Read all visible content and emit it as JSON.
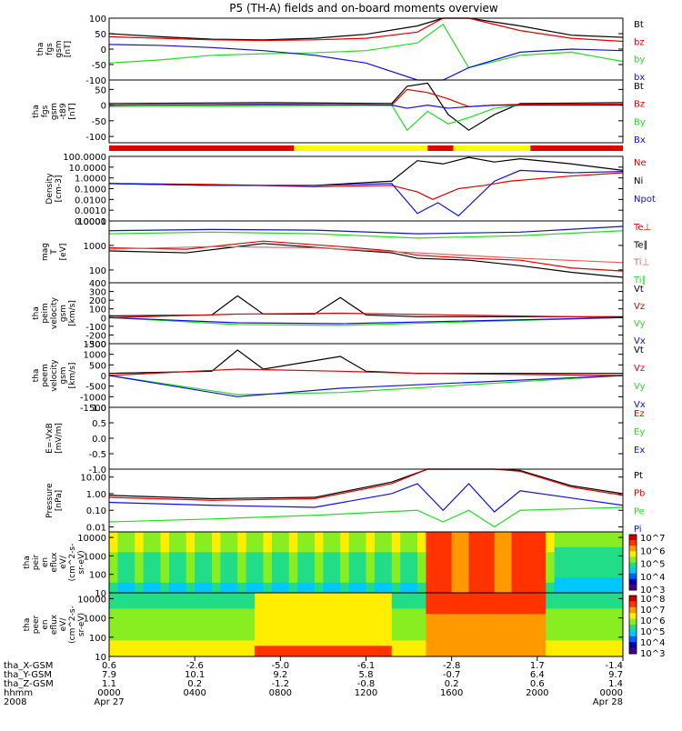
{
  "title": "P5 (TH-A) fields and on-board moments overview",
  "colors": {
    "black": "#000000",
    "red": "#e00000",
    "green": "#22dd22",
    "blue": "#1010dd",
    "yellow": "#ffff00"
  },
  "chart_data": [
    {
      "type": "line",
      "panel": "fgs",
      "ylabel": [
        "tha",
        "fgs",
        "gsm",
        "[nT]"
      ],
      "ylim": [
        -100,
        100
      ],
      "yticks": [
        "100",
        "50",
        "0",
        "-50",
        "-100"
      ],
      "legend": [
        "Bt",
        "bz",
        "by",
        "bx"
      ],
      "series": [
        {
          "name": "Bt",
          "color": "#000000",
          "t": [
            0,
            0.1,
            0.2,
            0.3,
            0.4,
            0.5,
            0.6,
            0.65,
            0.7,
            0.8,
            0.9,
            1.0
          ],
          "values": [
            50,
            40,
            32,
            30,
            35,
            48,
            75,
            100,
            100,
            75,
            45,
            38
          ]
        },
        {
          "name": "bz",
          "color": "#e00000",
          "t": [
            0,
            0.1,
            0.2,
            0.3,
            0.4,
            0.5,
            0.6,
            0.65,
            0.7,
            0.8,
            0.9,
            1.0
          ],
          "values": [
            40,
            35,
            30,
            28,
            30,
            35,
            55,
            100,
            100,
            60,
            35,
            25
          ]
        },
        {
          "name": "by",
          "color": "#22dd22",
          "t": [
            0,
            0.1,
            0.2,
            0.3,
            0.4,
            0.5,
            0.6,
            0.65,
            0.7,
            0.8,
            0.9,
            1.0
          ],
          "values": [
            -45,
            -35,
            -20,
            -15,
            -12,
            -5,
            20,
            80,
            -60,
            -20,
            -10,
            -40
          ]
        },
        {
          "name": "bx",
          "color": "#1010dd",
          "t": [
            0,
            0.1,
            0.2,
            0.3,
            0.4,
            0.5,
            0.6,
            0.65,
            0.7,
            0.8,
            0.9,
            1.0
          ],
          "values": [
            15,
            12,
            5,
            -5,
            -20,
            -45,
            -100,
            -100,
            -60,
            -10,
            0,
            -5
          ]
        }
      ]
    },
    {
      "type": "line",
      "panel": "fgs-t89",
      "ylabel": [
        "tha",
        "fgs",
        "gsm",
        "-t89",
        "[nT]"
      ],
      "ylim": [
        -120,
        80
      ],
      "yticks": [
        "50",
        "0",
        "-50",
        "-100"
      ],
      "legend": [
        "Bt",
        "Bz",
        "By",
        "Bx"
      ],
      "series": [
        {
          "name": "Bt",
          "color": "#000000",
          "t": [
            0,
            0.3,
            0.55,
            0.58,
            0.62,
            0.66,
            0.7,
            0.75,
            0.8,
            1.0
          ],
          "values": [
            5,
            8,
            5,
            60,
            70,
            -30,
            -80,
            -30,
            5,
            8
          ]
        },
        {
          "name": "Bz",
          "color": "#e00000",
          "t": [
            0,
            0.3,
            0.55,
            0.58,
            0.62,
            0.66,
            0.7,
            0.75,
            0.8,
            1.0
          ],
          "values": [
            0,
            3,
            0,
            50,
            40,
            20,
            -5,
            0,
            2,
            3
          ]
        },
        {
          "name": "By",
          "color": "#22dd22",
          "t": [
            0,
            0.3,
            0.55,
            0.58,
            0.62,
            0.66,
            0.7,
            0.75,
            0.8,
            1.0
          ],
          "values": [
            -5,
            -2,
            0,
            -80,
            -20,
            -60,
            -40,
            -10,
            0,
            0
          ]
        },
        {
          "name": "Bx",
          "color": "#1010dd",
          "t": [
            0,
            0.3,
            0.55,
            0.58,
            0.62,
            0.66,
            0.7,
            0.75,
            0.8,
            1.0
          ],
          "values": [
            0,
            2,
            0,
            -10,
            0,
            -10,
            -5,
            0,
            0,
            0
          ]
        }
      ]
    },
    {
      "type": "line",
      "panel": "density",
      "scale": "log",
      "ylabel": [
        "Density",
        "[cm-3]"
      ],
      "ylim": [
        0.0001,
        100
      ],
      "yticks": [
        "100.0000",
        "10.0000",
        "1.0000",
        "0.1000",
        "0.0100",
        "0.0010",
        "0.0001"
      ],
      "legend": [
        "Ne",
        "Ni",
        "Npot"
      ],
      "series": [
        {
          "name": "Ne",
          "color": "#e00000",
          "t": [
            0,
            0.2,
            0.4,
            0.55,
            0.6,
            0.63,
            0.68,
            0.73,
            0.78,
            0.9,
            1.0
          ],
          "values": [
            0.3,
            0.25,
            0.15,
            0.2,
            0.05,
            0.01,
            0.1,
            0.2,
            0.5,
            1.5,
            3
          ]
        },
        {
          "name": "Ni",
          "color": "#000000",
          "t": [
            0,
            0.2,
            0.4,
            0.55,
            0.6,
            0.65,
            0.7,
            0.75,
            0.8,
            0.9,
            1.0
          ],
          "values": [
            0.3,
            0.2,
            0.2,
            0.5,
            40,
            20,
            80,
            30,
            60,
            20,
            5
          ]
        },
        {
          "name": "Npot",
          "color": "#1010dd",
          "t": [
            0,
            0.2,
            0.4,
            0.55,
            0.6,
            0.64,
            0.68,
            0.75,
            0.8,
            0.9,
            1.0
          ],
          "values": [
            0.3,
            0.2,
            0.2,
            0.3,
            0.0005,
            0.005,
            0.0003,
            0.5,
            5,
            3,
            4
          ]
        }
      ]
    },
    {
      "type": "line",
      "panel": "temperature",
      "scale": "log",
      "ylabel": [
        "mag",
        "T",
        "[eV]"
      ],
      "ylim": [
        30,
        10000
      ],
      "yticks": [
        "10000",
        "1000",
        "100"
      ],
      "legend": [
        "Te⊥",
        "Te∥",
        "Ti⊥",
        "Ti∥"
      ],
      "series": [
        {
          "name": "Te⊥",
          "color": "#e00000",
          "t": [
            0,
            0.15,
            0.3,
            0.45,
            0.55,
            0.6,
            0.7,
            0.8,
            0.9,
            1.0
          ],
          "values": [
            800,
            700,
            1500,
            900,
            600,
            400,
            300,
            250,
            120,
            90
          ]
        },
        {
          "name": "Te∥",
          "color": "#000000",
          "t": [
            0,
            0.15,
            0.3,
            0.45,
            0.55,
            0.6,
            0.7,
            0.8,
            0.9,
            1.0
          ],
          "values": [
            600,
            500,
            1200,
            700,
            500,
            300,
            250,
            150,
            80,
            50
          ]
        },
        {
          "name": "Ti⊥",
          "color": "#e06060",
          "t": [
            0,
            0.2,
            0.4,
            0.6,
            0.8,
            1.0
          ],
          "values": [
            700,
            900,
            800,
            500,
            300,
            200
          ]
        },
        {
          "name": "Ti∥",
          "color": "#22dd22",
          "t": [
            0,
            0.2,
            0.4,
            0.6,
            0.8,
            1.0
          ],
          "values": [
            3000,
            3500,
            3000,
            2000,
            2500,
            4000
          ]
        },
        {
          "name": "Ti",
          "color": "#1010dd",
          "t": [
            0,
            0.2,
            0.4,
            0.6,
            0.8,
            1.0
          ],
          "values": [
            4000,
            4500,
            4200,
            3000,
            3500,
            6000
          ]
        }
      ]
    },
    {
      "type": "line",
      "panel": "peim-velocity",
      "ylabel": [
        "tha",
        "peim",
        "velocity",
        "gsm",
        "[km/s]"
      ],
      "ylim": [
        -300,
        400
      ],
      "yticks": [
        "400",
        "300",
        "200",
        "100",
        "0",
        "-100",
        "-200",
        "-300"
      ],
      "legend": [
        "Vt",
        "Vz",
        "Vy",
        "Vx"
      ],
      "series": [
        {
          "name": "Vt",
          "color": "#000000",
          "t": [
            0,
            0.2,
            0.25,
            0.3,
            0.4,
            0.45,
            0.5,
            0.6,
            1.0
          ],
          "values": [
            20,
            30,
            250,
            40,
            40,
            230,
            30,
            10,
            10
          ]
        },
        {
          "name": "Vz",
          "color": "#e00000",
          "t": [
            0,
            0.25,
            0.45,
            1.0
          ],
          "values": [
            0,
            40,
            50,
            0
          ]
        },
        {
          "name": "Vy",
          "color": "#22dd22",
          "t": [
            0,
            0.25,
            0.45,
            1.0
          ],
          "values": [
            0,
            -80,
            -90,
            0
          ]
        },
        {
          "name": "Vx",
          "color": "#1010dd",
          "t": [
            0,
            0.25,
            0.45,
            1.0
          ],
          "values": [
            0,
            -60,
            -70,
            0
          ]
        }
      ]
    },
    {
      "type": "line",
      "panel": "peem-velocity",
      "ylabel": [
        "tha",
        "peem",
        "velocity",
        "gsm",
        "[km/s]"
      ],
      "ylim": [
        -1500,
        1500
      ],
      "yticks": [
        "1500",
        "1000",
        "500",
        "0",
        "-500",
        "-1000",
        "-1500"
      ],
      "legend": [
        "Vt",
        "Vz",
        "Vy",
        "Vx"
      ],
      "series": [
        {
          "name": "Vt",
          "color": "#000000",
          "t": [
            0,
            0.2,
            0.25,
            0.3,
            0.45,
            0.5,
            0.6,
            1.0
          ],
          "values": [
            100,
            200,
            1200,
            300,
            900,
            200,
            100,
            100
          ]
        },
        {
          "name": "Vz",
          "color": "#e00000",
          "t": [
            0,
            0.25,
            0.45,
            0.6,
            1.0
          ],
          "values": [
            0,
            300,
            200,
            100,
            0
          ]
        },
        {
          "name": "Vy",
          "color": "#22dd22",
          "t": [
            0,
            0.25,
            0.45,
            1.0
          ],
          "values": [
            0,
            -900,
            -800,
            0
          ]
        },
        {
          "name": "Vx",
          "color": "#1010dd",
          "t": [
            0,
            0.25,
            0.45,
            1.0
          ],
          "values": [
            0,
            -1000,
            -600,
            0
          ]
        }
      ]
    },
    {
      "type": "line",
      "panel": "efield",
      "ylabel": [
        "E=-VxB",
        "[mV/m]"
      ],
      "ylim": [
        -1,
        1
      ],
      "yticks": [
        "1.0",
        "0.5",
        "0.0",
        "-0.5",
        "-1.0"
      ],
      "legend": [
        "Ez",
        "Ey",
        "Ex"
      ],
      "series": []
    },
    {
      "type": "line",
      "panel": "pressure",
      "scale": "log",
      "ylabel": [
        "Pressure",
        "[nPa]"
      ],
      "ylim": [
        0.005,
        30
      ],
      "yticks": [
        "10.00",
        "1.00",
        "0.10",
        "0.01"
      ],
      "legend": [
        "Pt",
        "Pb",
        "Pe",
        "Pi"
      ],
      "series": [
        {
          "name": "Pt",
          "color": "#000000",
          "t": [
            0,
            0.2,
            0.4,
            0.55,
            0.62,
            0.75,
            0.8,
            0.9,
            1.0
          ],
          "values": [
            0.8,
            0.5,
            0.6,
            5,
            30,
            30,
            25,
            3,
            1.0
          ]
        },
        {
          "name": "Pb",
          "color": "#e00000",
          "t": [
            0,
            0.2,
            0.4,
            0.55,
            0.62,
            0.75,
            0.8,
            0.9,
            1.0
          ],
          "values": [
            0.6,
            0.4,
            0.5,
            4,
            30,
            30,
            22,
            2.5,
            0.8
          ]
        },
        {
          "name": "Pe",
          "color": "#22dd22",
          "t": [
            0,
            0.2,
            0.4,
            0.6,
            0.65,
            0.7,
            0.75,
            0.8,
            1.0
          ],
          "values": [
            0.02,
            0.03,
            0.05,
            0.1,
            0.02,
            0.1,
            0.01,
            0.1,
            0.15
          ]
        },
        {
          "name": "Pi",
          "color": "#1010dd",
          "t": [
            0,
            0.2,
            0.4,
            0.55,
            0.6,
            0.65,
            0.7,
            0.75,
            0.8,
            1.0
          ],
          "values": [
            0.3,
            0.2,
            0.15,
            1.0,
            4,
            0.1,
            4,
            0.08,
            1.5,
            0.2
          ]
        }
      ]
    },
    {
      "type": "heatmap",
      "panel": "peir-eflux",
      "ylabel": [
        "tha",
        "peir",
        "en",
        "eflux",
        "eV/",
        "(cm^2-s-",
        "sr-eV)"
      ],
      "ylim": [
        10,
        20000
      ],
      "yticks": [
        "10000",
        "1000",
        "100",
        "10"
      ],
      "colorbar_ticks": [
        "10^7",
        "10^6",
        "10^5",
        "10^4",
        "10^3"
      ]
    },
    {
      "type": "heatmap",
      "panel": "peer-eflux",
      "ylabel": [
        "tha",
        "peer",
        "en",
        "eflux",
        "eV/",
        "(cm^2-s-",
        "sr-eV)"
      ],
      "ylim": [
        10,
        20000
      ],
      "yticks": [
        "10000",
        "1000",
        "100",
        "10"
      ],
      "colorbar_ticks": [
        "10^8",
        "10^7",
        "10^6",
        "10^5",
        "10^4",
        "10^3"
      ]
    }
  ],
  "footer": {
    "row_labels": [
      "tha_X-GSM",
      "tha_Y-GSM",
      "tha_Z-GSM",
      "hhmm",
      "2008"
    ],
    "columns": [
      {
        "v": [
          "0.6",
          "7.9",
          "1.1",
          "0000",
          "Apr 27"
        ]
      },
      {
        "v": [
          "-2.6",
          "10.1",
          "0.2",
          "0400",
          ""
        ]
      },
      {
        "v": [
          "-5.0",
          "9.2",
          "-1.2",
          "0800",
          ""
        ]
      },
      {
        "v": [
          "-6.1",
          "5.8",
          "-0.8",
          "1200",
          ""
        ]
      },
      {
        "v": [
          "-2.8",
          "-0.7",
          "0.2",
          "1600",
          ""
        ]
      },
      {
        "v": [
          "1.7",
          "6.4",
          "0.6",
          "2000",
          ""
        ]
      },
      {
        "v": [
          "-1.4",
          "9.7",
          "1.4",
          "0000",
          "Apr 28"
        ]
      }
    ]
  }
}
